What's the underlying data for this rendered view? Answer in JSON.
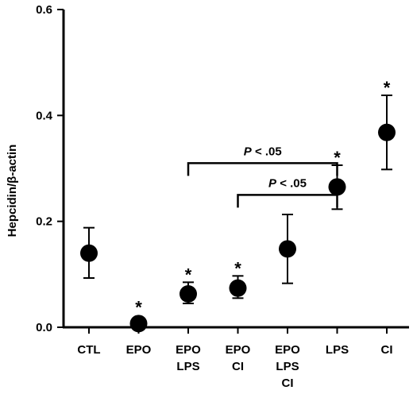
{
  "chart_data": {
    "type": "scatter",
    "ylabel": "Hepcidin/β-actin",
    "ylim": [
      0,
      0.6
    ],
    "yticks": [
      "0.0",
      "0.2",
      "0.4",
      "0.6"
    ],
    "ytick_values": [
      0,
      0.2,
      0.4,
      0.6
    ],
    "categories": [
      [
        "CTL"
      ],
      [
        "EPO"
      ],
      [
        "EPO",
        "LPS"
      ],
      [
        "EPO",
        "CI"
      ],
      [
        "EPO",
        "LPS",
        "CI"
      ],
      [
        "LPS"
      ],
      [
        "CI"
      ]
    ],
    "values": [
      0.14,
      0.007,
      0.063,
      0.074,
      0.148,
      0.265,
      0.368
    ],
    "error_upper": [
      0.188,
      0.012,
      0.085,
      0.097,
      0.213,
      0.306,
      0.438
    ],
    "error_lower": [
      0.093,
      0.002,
      0.045,
      0.055,
      0.083,
      0.223,
      0.298
    ],
    "significance": [
      "",
      "*",
      "*",
      "*",
      "",
      "*",
      "*"
    ],
    "comparisons": [
      {
        "from_index": 2,
        "to_index": 5,
        "label_italic": "P",
        "label_rest": " < .05",
        "level": 0.31
      },
      {
        "from_index": 3,
        "to_index": 5,
        "label_italic": "P",
        "label_rest": " < .05",
        "level": 0.25
      }
    ],
    "grid": false,
    "legend": "none"
  }
}
